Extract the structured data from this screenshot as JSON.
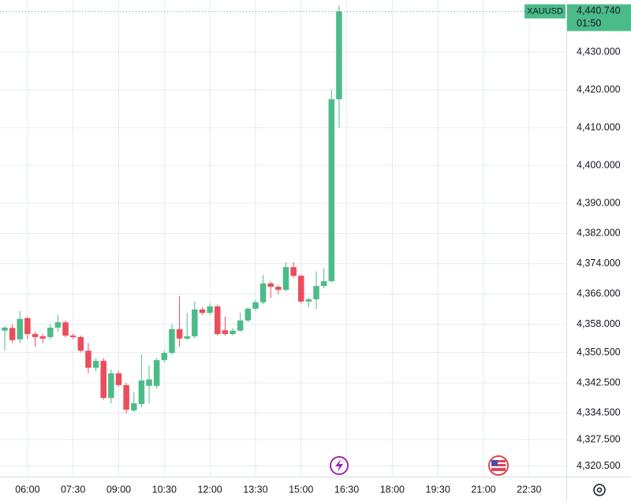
{
  "chart_data": {
    "type": "candlestick",
    "up_color": "#4cbb8a",
    "down_color": "#eb4d5c",
    "grid": true,
    "open": [
      4356.3,
      4357,
      4354,
      4359.6,
      4355.4,
      4354.8,
      4354.6,
      4357.1,
      4358.5,
      4355,
      4354.6,
      4351,
      4346.5,
      4348.3,
      4338.5,
      4345,
      4341.9,
      4335.2,
      4336.9,
      4341.7,
      4341.7,
      4348.5,
      4350.4,
      4356.7,
      4354.2,
      4354.8,
      4361.9,
      4361,
      4362.7,
      4356.4,
      4355.4,
      4356.3,
      4359,
      4362.1,
      4363.8,
      4368.8,
      4367.9,
      4367.1,
      4373.1,
      4370.8,
      4364,
      4364.6,
      4368.1,
      4369.4,
      4417.5
    ],
    "high": [
      4357.5,
      4358,
      4361.5,
      4360,
      4356,
      4355.5,
      4358,
      4360.5,
      4359,
      4355.5,
      4355,
      4353,
      4349,
      4349,
      4346,
      4345.5,
      4342.5,
      4340,
      4350,
      4347,
      4349,
      4351,
      4358,
      4365.5,
      4361,
      4364,
      4362.5,
      4363.5,
      4363.2,
      4360,
      4357,
      4361,
      4362.5,
      4364.5,
      4371,
      4369.3,
      4368.4,
      4374.4,
      4374.4,
      4371.2,
      4365,
      4372,
      4372.8,
      4420,
      4442.4
    ],
    "low": [
      4351,
      4353,
      4353,
      4354,
      4352,
      4353,
      4354,
      4356,
      4354.5,
      4354,
      4350.5,
      4345,
      4345.5,
      4338,
      4337,
      4341.5,
      4334.5,
      4334.8,
      4336,
      4337,
      4341,
      4348,
      4350,
      4352,
      4353.8,
      4354.3,
      4360.5,
      4360.5,
      4355,
      4355,
      4355,
      4356,
      4358.5,
      4361.5,
      4363.3,
      4365,
      4366,
      4366.7,
      4370.3,
      4363.5,
      4362.5,
      4362,
      4367.5,
      4369,
      4410
    ],
    "close": [
      4357.1,
      4353.8,
      4359.4,
      4355.4,
      4354.6,
      4354.2,
      4357.1,
      4358.5,
      4355,
      4354.6,
      4351,
      4346.5,
      4348.3,
      4338.5,
      4345,
      4341.9,
      4335.4,
      4337.1,
      4343.1,
      4343.4,
      4348.5,
      4350.4,
      4356.7,
      4354.2,
      4354.8,
      4361.9,
      4361,
      4362.7,
      4355.4,
      4355.4,
      4356.3,
      4359,
      4362.1,
      4363.8,
      4368.8,
      4367.9,
      4367.1,
      4373.1,
      4370.8,
      4364,
      4364.6,
      4368.1,
      4369.4,
      4417.5,
      4440.74
    ],
    "xlim": [
      -0.62,
      73.9
    ],
    "xticks": [
      {
        "value": 3,
        "label": "06:00"
      },
      {
        "value": 9,
        "label": "07:30"
      },
      {
        "value": 15,
        "label": "09:00"
      },
      {
        "value": 21,
        "label": "10:30"
      },
      {
        "value": 27,
        "label": "12:00"
      },
      {
        "value": 33,
        "label": "13:30"
      },
      {
        "value": 39,
        "label": "15:00"
      },
      {
        "value": 45,
        "label": "16:30"
      },
      {
        "value": 51,
        "label": "18:00"
      },
      {
        "value": 57,
        "label": "19:30"
      },
      {
        "value": 63,
        "label": "21:00"
      },
      {
        "value": 69,
        "label": "22:30"
      }
    ],
    "ylim": [
      4317.7,
      4443.75
    ],
    "yticks": [
      {
        "value": 4320.5,
        "label": "4,320.500"
      },
      {
        "value": 4327.5,
        "label": "4,327.500"
      },
      {
        "value": 4334.5,
        "label": "4,334.500"
      },
      {
        "value": 4342.5,
        "label": "4,342.500"
      },
      {
        "value": 4350.5,
        "label": "4,350.500"
      },
      {
        "value": 4358,
        "label": "4,358.000"
      },
      {
        "value": 4366,
        "label": "4,366.000"
      },
      {
        "value": 4374,
        "label": "4,374.000"
      },
      {
        "value": 4382,
        "label": "4,382.000"
      },
      {
        "value": 4390,
        "label": "4,390.000"
      },
      {
        "value": 4400,
        "label": "4,400.000"
      },
      {
        "value": 4410,
        "label": "4,410.000"
      },
      {
        "value": 4420,
        "label": "4,420.000"
      },
      {
        "value": 4430,
        "label": "4,430.000"
      }
    ],
    "last_price": {
      "symbol": "XAUUSD",
      "value": 4440.74,
      "label": "4,440.740",
      "countdown": "01:50",
      "color": "#4cbb8a"
    }
  }
}
